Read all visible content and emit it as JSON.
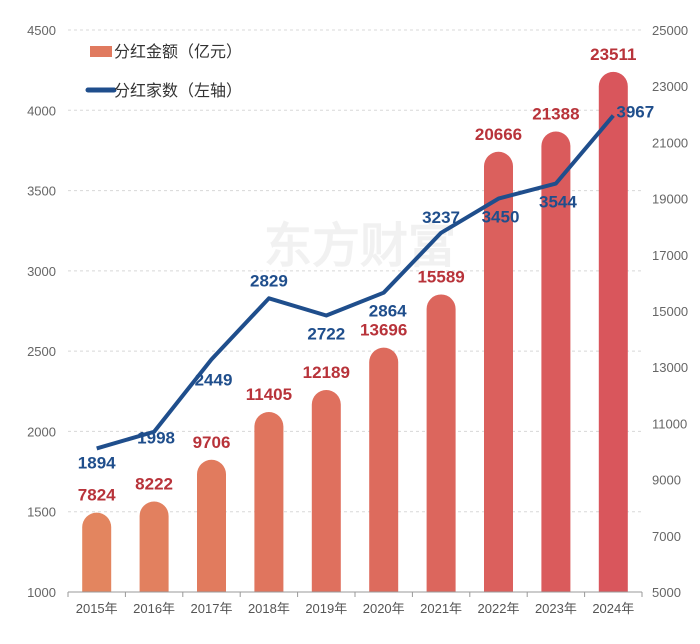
{
  "chart_data": {
    "type": "bar+line",
    "categories": [
      "2015年",
      "2016年",
      "2017年",
      "2018年",
      "2019年",
      "2020年",
      "2021年",
      "2022年",
      "2023年",
      "2024年"
    ],
    "series": [
      {
        "name": "分红金额（亿元）",
        "type": "bar",
        "axis": "right",
        "color": "#e07a5f",
        "values": [
          7824,
          8222,
          9706,
          11405,
          12189,
          13696,
          15589,
          20666,
          21388,
          23511
        ]
      },
      {
        "name": "分红家数（左轴）",
        "type": "line",
        "axis": "left",
        "color": "#1f4e8c",
        "values": [
          1894,
          1998,
          2449,
          2829,
          2722,
          2864,
          3237,
          3450,
          3544,
          3967
        ]
      }
    ],
    "left_axis": {
      "range": [
        1000,
        4500
      ],
      "ticks": [
        "1000",
        "1500",
        "2000",
        "2500",
        "3000",
        "3500",
        "4000",
        "4500"
      ]
    },
    "right_axis": {
      "range": [
        5000,
        25000
      ],
      "ticks": [
        "5000",
        "7000",
        "9000",
        "11000",
        "13000",
        "15000",
        "17000",
        "19000",
        "21000",
        "23000",
        "25000"
      ]
    },
    "grid": "horizontal dashed",
    "legend": "top-left",
    "bar_color_start": "#e3855f",
    "bar_color_end": "#d9565c",
    "line_label_color": "#1f4e8c",
    "bar_label_color": "#b8333a"
  },
  "watermark": "东方财富"
}
